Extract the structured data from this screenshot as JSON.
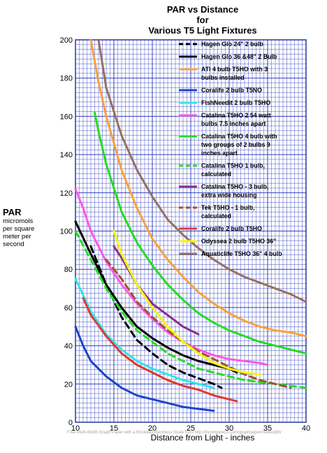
{
  "chart_data": {
    "type": "line",
    "title": "PAR vs Distance",
    "subtitle_lines": [
      "for",
      "Various T5 Light Fixtures"
    ],
    "xlabel": "Distance from Light - inches",
    "ylabel": "PAR",
    "ylabel_sub_lines": [
      "micromols",
      "per square",
      "meter per",
      "second"
    ],
    "xlim": [
      10,
      40
    ],
    "ylim": [
      0,
      200
    ],
    "x_ticks": [
      10,
      15,
      20,
      25,
      30,
      35,
      40
    ],
    "y_ticks": [
      0,
      20,
      40,
      60,
      80,
      100,
      120,
      140,
      160,
      180,
      200
    ],
    "grid": true,
    "legend_position": "top-right",
    "series": [
      {
        "legend_lines": [
          "Hagen Glo 24\" 2 bulb"
        ],
        "color": "#000000",
        "dash": "dashed",
        "points": [
          [
            12,
            92
          ],
          [
            14,
            72
          ],
          [
            16,
            55
          ],
          [
            18,
            43
          ],
          [
            20,
            36
          ],
          [
            22,
            30
          ],
          [
            24,
            26
          ],
          [
            26,
            23
          ],
          [
            28,
            20
          ],
          [
            29,
            18
          ]
        ]
      },
      {
        "legend_lines": [
          "Hagen Glo 36 &48\" 2 Bulb"
        ],
        "color": "#000000",
        "dash": "solid",
        "points": [
          [
            10,
            105
          ],
          [
            12,
            88
          ],
          [
            14,
            72
          ],
          [
            16,
            60
          ],
          [
            18,
            50
          ],
          [
            20,
            44
          ],
          [
            22,
            39
          ],
          [
            24,
            35
          ],
          [
            26,
            32
          ],
          [
            28,
            30
          ],
          [
            30,
            28
          ],
          [
            31,
            26
          ]
        ]
      },
      {
        "legend_lines": [
          "ATI 4 bulb T5HO with 3",
          "bulbs installed"
        ],
        "color": "#f7a13d",
        "dash": "solid",
        "points": [
          [
            12,
            200
          ],
          [
            13,
            178
          ],
          [
            14,
            160
          ],
          [
            16,
            132
          ],
          [
            18,
            112
          ],
          [
            20,
            96
          ],
          [
            22,
            85
          ],
          [
            24,
            76
          ],
          [
            26,
            68
          ],
          [
            28,
            62
          ],
          [
            30,
            57
          ],
          [
            32,
            53
          ],
          [
            34,
            50
          ],
          [
            36,
            48
          ],
          [
            38,
            47
          ],
          [
            40,
            45
          ]
        ]
      },
      {
        "legend_lines": [
          "Coralife 2 bulb T5NO"
        ],
        "color": "#1a45c8",
        "dash": "solid",
        "points": [
          [
            10,
            50
          ],
          [
            11,
            40
          ],
          [
            12,
            32
          ],
          [
            14,
            24
          ],
          [
            16,
            18
          ],
          [
            18,
            14
          ],
          [
            20,
            12
          ],
          [
            22,
            10
          ],
          [
            24,
            8
          ],
          [
            26,
            7
          ],
          [
            28,
            6
          ]
        ]
      },
      {
        "legend_lines": [
          "FishNeedit 2 bulb T5HO"
        ],
        "color": "#2fe5e8",
        "dash": "solid",
        "points": [
          [
            10,
            75
          ],
          [
            12,
            58
          ],
          [
            14,
            46
          ],
          [
            16,
            38
          ],
          [
            18,
            32
          ],
          [
            20,
            28
          ],
          [
            22,
            25
          ],
          [
            24,
            22
          ],
          [
            26,
            20
          ],
          [
            28,
            18
          ]
        ]
      },
      {
        "legend_lines": [
          "Catalina T5HO 2 54 watt",
          "bulbs 7.5 inches apart"
        ],
        "color": "#ff55ee",
        "dash": "solid",
        "points": [
          [
            10,
            122
          ],
          [
            11,
            112
          ],
          [
            12,
            100
          ],
          [
            14,
            84
          ],
          [
            16,
            72
          ],
          [
            18,
            62
          ],
          [
            20,
            54
          ],
          [
            22,
            47
          ],
          [
            24,
            42
          ],
          [
            26,
            38
          ],
          [
            28,
            35
          ],
          [
            30,
            33
          ],
          [
            32,
            32
          ],
          [
            34,
            31
          ],
          [
            35,
            30
          ]
        ]
      },
      {
        "legend_lines": [
          "Catalina T5HO 4 bulb with",
          "two groups of 2 bulbs 9",
          "inches apart"
        ],
        "color": "#22dd22",
        "dash": "solid",
        "points": [
          [
            12.5,
            162
          ],
          [
            13,
            152
          ],
          [
            14,
            135
          ],
          [
            16,
            110
          ],
          [
            18,
            94
          ],
          [
            20,
            82
          ],
          [
            22,
            72
          ],
          [
            24,
            64
          ],
          [
            26,
            57
          ],
          [
            28,
            52
          ],
          [
            30,
            48
          ],
          [
            32,
            45
          ],
          [
            34,
            42
          ],
          [
            36,
            40
          ],
          [
            38,
            38
          ],
          [
            40,
            36
          ]
        ]
      },
      {
        "legend_lines": [
          "Catalina T5HO 1 bulb,",
          "calculated"
        ],
        "color": "#22dd22",
        "dash": "dashed",
        "points": [
          [
            10,
            100
          ],
          [
            12,
            85
          ],
          [
            14,
            70
          ],
          [
            16,
            58
          ],
          [
            18,
            48
          ],
          [
            20,
            42
          ],
          [
            22,
            36
          ],
          [
            24,
            32
          ],
          [
            26,
            28
          ],
          [
            28,
            26
          ],
          [
            30,
            24
          ],
          [
            32,
            22
          ],
          [
            34,
            21
          ],
          [
            36,
            20
          ],
          [
            38,
            19
          ],
          [
            40,
            18
          ]
        ]
      },
      {
        "legend_lines": [
          "Catalina T5HO - 3 bulb,",
          "extra wide housing"
        ],
        "color": "#8b2c8f",
        "dash": "solid",
        "points": [
          [
            15,
            92
          ],
          [
            16,
            86
          ],
          [
            18,
            72
          ],
          [
            20,
            62
          ],
          [
            22,
            56
          ],
          [
            24,
            50
          ],
          [
            26,
            46
          ]
        ]
      },
      {
        "legend_lines": [
          "Tek T5HO - 1 bulb,",
          "calculated"
        ],
        "color": "#a0522d",
        "dash": "dashed",
        "points": [
          [
            14,
            85
          ],
          [
            16,
            75
          ],
          [
            18,
            63
          ],
          [
            20,
            55
          ],
          [
            22,
            48
          ],
          [
            24,
            42
          ],
          [
            26,
            37
          ],
          [
            28,
            33
          ],
          [
            30,
            29
          ],
          [
            32,
            25
          ],
          [
            34,
            22
          ],
          [
            36,
            20
          ],
          [
            38,
            18
          ]
        ]
      },
      {
        "legend_lines": [
          "Coralife 2 bulb T5HO"
        ],
        "color": "#e4382a",
        "dash": "solid",
        "points": [
          [
            11,
            65
          ],
          [
            12,
            56
          ],
          [
            14,
            45
          ],
          [
            16,
            36
          ],
          [
            18,
            30
          ],
          [
            20,
            26
          ],
          [
            22,
            22
          ],
          [
            24,
            19
          ],
          [
            26,
            17
          ],
          [
            28,
            14
          ],
          [
            30,
            12
          ],
          [
            31,
            11
          ]
        ]
      },
      {
        "legend_lines": [
          "Odyssea 2 bulb T5HO 36\""
        ],
        "color": "#f5f50a",
        "dash": "solid",
        "points": [
          [
            15,
            100
          ],
          [
            16,
            88
          ],
          [
            18,
            72
          ],
          [
            20,
            60
          ],
          [
            22,
            50
          ],
          [
            24,
            42
          ],
          [
            26,
            36
          ],
          [
            28,
            31
          ],
          [
            30,
            28
          ],
          [
            32,
            26
          ],
          [
            34,
            25
          ]
        ]
      },
      {
        "legend_lines": [
          "Aquaticlife T5HO 36\" 4 bulb"
        ],
        "color": "#967060",
        "dash": "solid",
        "points": [
          [
            13,
            200
          ],
          [
            14,
            175
          ],
          [
            16,
            150
          ],
          [
            18,
            132
          ],
          [
            20,
            118
          ],
          [
            22,
            106
          ],
          [
            24,
            98
          ],
          [
            26,
            91
          ],
          [
            28,
            85
          ],
          [
            30,
            80
          ],
          [
            32,
            76
          ],
          [
            34,
            73
          ],
          [
            36,
            70
          ],
          [
            38,
            67
          ],
          [
            40,
            63
          ]
        ]
      }
    ]
  },
  "watermark": "Free Multi-Width Graph Paper with a Rockwell Hardness Scale from http://incompetech.com/graphpaper/multiwidth/"
}
